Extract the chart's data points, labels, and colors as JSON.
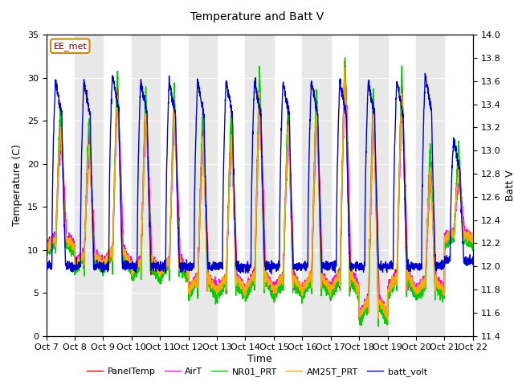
{
  "title": "Temperature and Batt V",
  "xlabel": "Time",
  "ylabel_left": "Temperature (C)",
  "ylabel_right": "Batt V",
  "ylim_left": [
    0,
    35
  ],
  "ylim_right": [
    11.4,
    14.0
  ],
  "yticks_left": [
    0,
    5,
    10,
    15,
    20,
    25,
    30,
    35
  ],
  "yticks_right": [
    11.4,
    11.6,
    11.8,
    12.0,
    12.2,
    12.4,
    12.6,
    12.8,
    13.0,
    13.2,
    13.4,
    13.6,
    13.8,
    14.0
  ],
  "xtick_positions": [
    0,
    1,
    2,
    3,
    4,
    5,
    6,
    7,
    8,
    9,
    10,
    11,
    12,
    13,
    14,
    15
  ],
  "xtick_labels": [
    "Oct 7",
    "Oct 8",
    "Oct 9",
    "Oct 10",
    "Oct 11",
    "Oct 12",
    "Oct 13",
    "Oct 14",
    "Oct 15",
    "Oct 16",
    "Oct 17",
    "Oct 18",
    "Oct 19",
    "Oct 20",
    "Oct 21",
    "Oct 22"
  ],
  "annotation_text": "EE_met",
  "legend_entries": [
    "PanelTemp",
    "AirT",
    "NR01_PRT",
    "AM25T_PRT",
    "batt_volt"
  ],
  "line_colors": [
    "#dd0000",
    "#ff00ff",
    "#00cc00",
    "#ffaa00",
    "#0000cc"
  ],
  "background_color": "#ffffff",
  "band_color": "#e8e8e8",
  "figsize": [
    6.4,
    4.8
  ],
  "dpi": 100,
  "title_fontsize": 10,
  "axis_fontsize": 9,
  "tick_fontsize": 8,
  "legend_fontsize": 8
}
